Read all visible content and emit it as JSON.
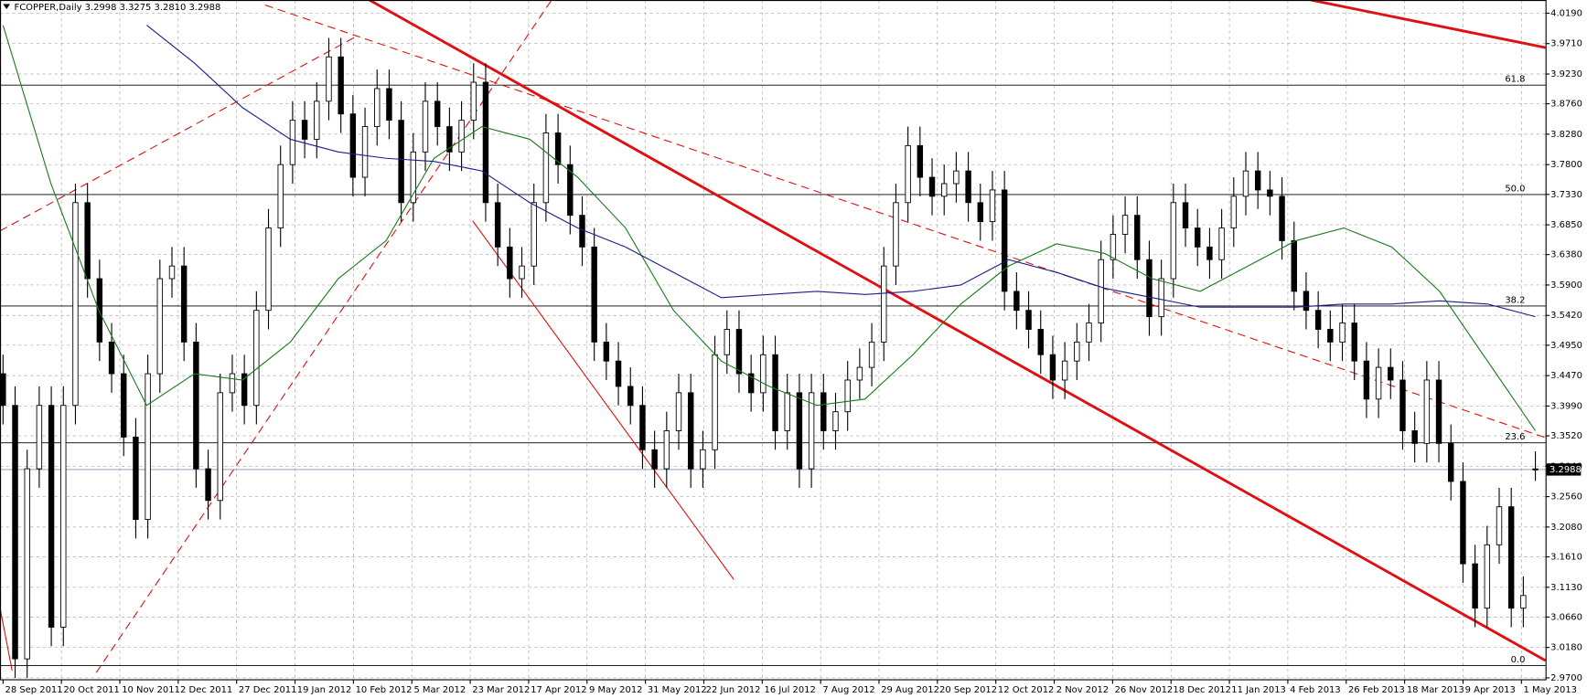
{
  "chart_data": {
    "type": "candlestick",
    "header": "FCOPPER,Daily  3.2998 3.3275 3.2810 3.2988",
    "ylim": [
      2.967,
      4.035
    ],
    "yticks": [
      {
        "value": 4.019,
        "label": "4.0190"
      },
      {
        "value": 3.971,
        "label": "3.9710"
      },
      {
        "value": 3.923,
        "label": "3.9230"
      },
      {
        "value": 3.876,
        "label": "3.8760"
      },
      {
        "value": 3.828,
        "label": "3.8280"
      },
      {
        "value": 3.78,
        "label": "3.7800"
      },
      {
        "value": 3.733,
        "label": "3.7330"
      },
      {
        "value": 3.685,
        "label": "3.6850"
      },
      {
        "value": 3.638,
        "label": "3.6380"
      },
      {
        "value": 3.59,
        "label": "3.5900"
      },
      {
        "value": 3.542,
        "label": "3.5420"
      },
      {
        "value": 3.495,
        "label": "3.4950"
      },
      {
        "value": 3.447,
        "label": "3.4470"
      },
      {
        "value": 3.399,
        "label": "3.3990"
      },
      {
        "value": 3.352,
        "label": "3.3520"
      },
      {
        "value": 3.304,
        "label": "3.3040"
      },
      {
        "value": 3.256,
        "label": "3.2560"
      },
      {
        "value": 3.208,
        "label": "3.2080"
      },
      {
        "value": 3.161,
        "label": "3.1610"
      },
      {
        "value": 3.113,
        "label": "3.1130"
      },
      {
        "value": 3.066,
        "label": "3.0660"
      },
      {
        "value": 3.018,
        "label": "3.0180"
      },
      {
        "value": 2.97,
        "label": "2.9700"
      }
    ],
    "x_labels": [
      "28 Sep 2011",
      "20 Oct 2011",
      "10 Nov 2011",
      "2 Dec 2011",
      "27 Dec 2011",
      "19 Jan 2012",
      "10 Feb 2012",
      "5 Mar 2012",
      "23 Mar 2012",
      "17 Apr 2012",
      "9 May 2012",
      "31 May 2012",
      "22 Jun 2012",
      "16 Jul 2012",
      "7 Aug 2012",
      "29 Aug 2012",
      "20 Sep 2012",
      "12 Oct 2012",
      "2 Nov 2012",
      "26 Nov 2012",
      "18 Dec 2012",
      "11 Jan 2013",
      "4 Feb 2013",
      "26 Feb 2013",
      "18 Mar 2013",
      "9 Apr 2013",
      "1 May 2013"
    ],
    "grid": true,
    "up_color": "#ffffff",
    "down_color": "#000000",
    "candles": [
      [
        3.45,
        3.48,
        3.37,
        3.4
      ],
      [
        3.4,
        3.43,
        2.97,
        3.0
      ],
      [
        3.0,
        3.33,
        2.97,
        3.3
      ],
      [
        3.3,
        3.43,
        3.27,
        3.4
      ],
      [
        3.4,
        3.43,
        3.02,
        3.05
      ],
      [
        3.05,
        3.43,
        3.02,
        3.4
      ],
      [
        3.4,
        3.75,
        3.37,
        3.72
      ],
      [
        3.72,
        3.75,
        3.57,
        3.6
      ],
      [
        3.6,
        3.63,
        3.47,
        3.5
      ],
      [
        3.5,
        3.53,
        3.42,
        3.45
      ],
      [
        3.45,
        3.48,
        3.32,
        3.35
      ],
      [
        3.35,
        3.38,
        3.19,
        3.22
      ],
      [
        3.22,
        3.48,
        3.19,
        3.45
      ],
      [
        3.45,
        3.63,
        3.42,
        3.6
      ],
      [
        3.6,
        3.65,
        3.57,
        3.62
      ],
      [
        3.62,
        3.65,
        3.47,
        3.5
      ],
      [
        3.5,
        3.53,
        3.27,
        3.3
      ],
      [
        3.3,
        3.33,
        3.22,
        3.25
      ],
      [
        3.25,
        3.45,
        3.22,
        3.42
      ],
      [
        3.42,
        3.48,
        3.39,
        3.45
      ],
      [
        3.45,
        3.48,
        3.37,
        3.4
      ],
      [
        3.4,
        3.58,
        3.37,
        3.55
      ],
      [
        3.55,
        3.71,
        3.52,
        3.68
      ],
      [
        3.68,
        3.81,
        3.65,
        3.78
      ],
      [
        3.78,
        3.88,
        3.75,
        3.85
      ],
      [
        3.85,
        3.88,
        3.79,
        3.82
      ],
      [
        3.82,
        3.91,
        3.79,
        3.88
      ],
      [
        3.88,
        3.98,
        3.85,
        3.95
      ],
      [
        3.95,
        3.98,
        3.83,
        3.86
      ],
      [
        3.86,
        3.89,
        3.73,
        3.76
      ],
      [
        3.76,
        3.87,
        3.73,
        3.84
      ],
      [
        3.84,
        3.93,
        3.81,
        3.9
      ],
      [
        3.9,
        3.93,
        3.82,
        3.85
      ],
      [
        3.85,
        3.88,
        3.69,
        3.72
      ],
      [
        3.72,
        3.83,
        3.69,
        3.8
      ],
      [
        3.8,
        3.91,
        3.77,
        3.88
      ],
      [
        3.88,
        3.91,
        3.81,
        3.84
      ],
      [
        3.84,
        3.87,
        3.77,
        3.8
      ],
      [
        3.8,
        3.88,
        3.77,
        3.85
      ],
      [
        3.85,
        3.94,
        3.82,
        3.91
      ],
      [
        3.91,
        3.94,
        3.69,
        3.72
      ],
      [
        3.72,
        3.75,
        3.62,
        3.65
      ],
      [
        3.65,
        3.68,
        3.57,
        3.6
      ],
      [
        3.6,
        3.65,
        3.57,
        3.62
      ],
      [
        3.62,
        3.75,
        3.59,
        3.72
      ],
      [
        3.72,
        3.86,
        3.69,
        3.83
      ],
      [
        3.83,
        3.86,
        3.75,
        3.78
      ],
      [
        3.78,
        3.81,
        3.67,
        3.7
      ],
      [
        3.7,
        3.73,
        3.62,
        3.65
      ],
      [
        3.65,
        3.68,
        3.47,
        3.5
      ],
      [
        3.5,
        3.53,
        3.44,
        3.47
      ],
      [
        3.47,
        3.5,
        3.4,
        3.43
      ],
      [
        3.43,
        3.46,
        3.37,
        3.4
      ],
      [
        3.4,
        3.43,
        3.3,
        3.33
      ],
      [
        3.33,
        3.36,
        3.27,
        3.3
      ],
      [
        3.3,
        3.39,
        3.27,
        3.36
      ],
      [
        3.36,
        3.45,
        3.33,
        3.42
      ],
      [
        3.42,
        3.45,
        3.27,
        3.3
      ],
      [
        3.3,
        3.36,
        3.27,
        3.33
      ],
      [
        3.33,
        3.51,
        3.3,
        3.48
      ],
      [
        3.48,
        3.55,
        3.45,
        3.52
      ],
      [
        3.52,
        3.55,
        3.42,
        3.45
      ],
      [
        3.45,
        3.48,
        3.39,
        3.42
      ],
      [
        3.42,
        3.51,
        3.39,
        3.48
      ],
      [
        3.48,
        3.51,
        3.33,
        3.36
      ],
      [
        3.36,
        3.45,
        3.33,
        3.42
      ],
      [
        3.42,
        3.45,
        3.27,
        3.3
      ],
      [
        3.3,
        3.45,
        3.27,
        3.42
      ],
      [
        3.42,
        3.45,
        3.33,
        3.36
      ],
      [
        3.36,
        3.42,
        3.33,
        3.39
      ],
      [
        3.39,
        3.47,
        3.36,
        3.44
      ],
      [
        3.44,
        3.49,
        3.41,
        3.46
      ],
      [
        3.46,
        3.53,
        3.43,
        3.5
      ],
      [
        3.5,
        3.65,
        3.47,
        3.62
      ],
      [
        3.62,
        3.75,
        3.59,
        3.72
      ],
      [
        3.72,
        3.84,
        3.69,
        3.81
      ],
      [
        3.81,
        3.84,
        3.73,
        3.76
      ],
      [
        3.76,
        3.79,
        3.7,
        3.73
      ],
      [
        3.73,
        3.78,
        3.7,
        3.75
      ],
      [
        3.75,
        3.8,
        3.72,
        3.77
      ],
      [
        3.77,
        3.8,
        3.69,
        3.72
      ],
      [
        3.72,
        3.75,
        3.66,
        3.69
      ],
      [
        3.69,
        3.77,
        3.66,
        3.74
      ],
      [
        3.74,
        3.77,
        3.55,
        3.58
      ],
      [
        3.58,
        3.61,
        3.52,
        3.55
      ],
      [
        3.55,
        3.58,
        3.49,
        3.52
      ],
      [
        3.52,
        3.55,
        3.45,
        3.48
      ],
      [
        3.48,
        3.51,
        3.41,
        3.44
      ],
      [
        3.44,
        3.5,
        3.41,
        3.47
      ],
      [
        3.47,
        3.53,
        3.44,
        3.5
      ],
      [
        3.5,
        3.56,
        3.47,
        3.53
      ],
      [
        3.53,
        3.66,
        3.5,
        3.63
      ],
      [
        3.63,
        3.7,
        3.6,
        3.67
      ],
      [
        3.67,
        3.73,
        3.64,
        3.7
      ],
      [
        3.7,
        3.73,
        3.6,
        3.63
      ],
      [
        3.63,
        3.66,
        3.51,
        3.54
      ],
      [
        3.54,
        3.63,
        3.51,
        3.6
      ],
      [
        3.6,
        3.75,
        3.57,
        3.72
      ],
      [
        3.72,
        3.75,
        3.65,
        3.68
      ],
      [
        3.68,
        3.71,
        3.62,
        3.65
      ],
      [
        3.65,
        3.68,
        3.6,
        3.63
      ],
      [
        3.63,
        3.71,
        3.6,
        3.68
      ],
      [
        3.68,
        3.76,
        3.65,
        3.73
      ],
      [
        3.73,
        3.8,
        3.7,
        3.77
      ],
      [
        3.77,
        3.8,
        3.71,
        3.74
      ],
      [
        3.74,
        3.77,
        3.7,
        3.73
      ],
      [
        3.73,
        3.76,
        3.63,
        3.66
      ],
      [
        3.66,
        3.69,
        3.55,
        3.58
      ],
      [
        3.58,
        3.61,
        3.52,
        3.55
      ],
      [
        3.55,
        3.58,
        3.49,
        3.52
      ],
      [
        3.52,
        3.55,
        3.47,
        3.5
      ],
      [
        3.5,
        3.56,
        3.47,
        3.53
      ],
      [
        3.53,
        3.56,
        3.44,
        3.47
      ],
      [
        3.47,
        3.5,
        3.38,
        3.41
      ],
      [
        3.41,
        3.49,
        3.38,
        3.46
      ],
      [
        3.46,
        3.49,
        3.41,
        3.44
      ],
      [
        3.44,
        3.47,
        3.33,
        3.36
      ],
      [
        3.36,
        3.39,
        3.31,
        3.34
      ],
      [
        3.34,
        3.47,
        3.31,
        3.44
      ],
      [
        3.44,
        3.47,
        3.31,
        3.34
      ],
      [
        3.34,
        3.37,
        3.25,
        3.28
      ],
      [
        3.28,
        3.31,
        3.12,
        3.15
      ],
      [
        3.15,
        3.18,
        3.05,
        3.08
      ],
      [
        3.08,
        3.21,
        3.05,
        3.18
      ],
      [
        3.18,
        3.27,
        3.15,
        3.24
      ],
      [
        3.24,
        3.27,
        3.05,
        3.08
      ],
      [
        3.08,
        3.13,
        3.05,
        3.1
      ],
      [
        3.2998,
        3.3275,
        3.281,
        3.2988
      ]
    ],
    "indicators": [
      {
        "color": "#1a7a1a",
        "values": [
          4.0,
          3.75,
          3.55,
          3.4,
          3.45,
          3.44,
          3.5,
          3.6,
          3.66,
          3.79,
          3.84,
          3.82,
          3.76,
          3.68,
          3.55,
          3.47,
          3.43,
          3.4,
          3.41,
          3.48,
          3.56,
          3.62,
          3.655,
          3.64,
          3.6,
          3.58,
          3.62,
          3.66,
          3.68,
          3.65,
          3.58,
          3.47,
          3.36
        ]
      },
      {
        "color": "#1c1c8c",
        "values": [
          null,
          null,
          null,
          4.0,
          3.94,
          3.87,
          3.82,
          3.8,
          3.79,
          3.785,
          3.77,
          3.72,
          3.68,
          3.65,
          3.61,
          3.57,
          3.575,
          3.58,
          3.575,
          3.58,
          3.59,
          3.63,
          3.61,
          3.585,
          3.57,
          3.555,
          3.555,
          3.555,
          3.56,
          3.56,
          3.565,
          3.56,
          3.54
        ]
      }
    ],
    "fib_levels": [
      {
        "label": "61.8",
        "price": 3.9055
      },
      {
        "label": "50.0",
        "price": 3.7328
      },
      {
        "label": "38.2",
        "price": 3.5569
      },
      {
        "label": "23.6",
        "price": 3.341
      },
      {
        "label": "0.0",
        "price": 2.9893
      }
    ],
    "fib_color": "#000000",
    "current_price": 3.2988
  }
}
